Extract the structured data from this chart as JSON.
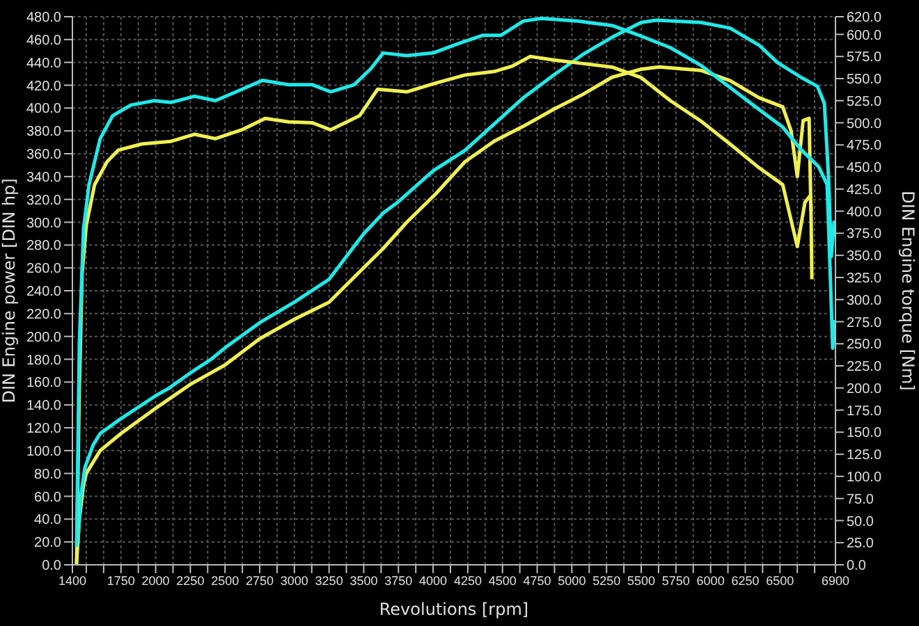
{
  "chart_data": {
    "type": "line",
    "xlabel": "Revolutions [rpm]",
    "ylabel": "DIN Engine power [DIN hp]",
    "y2label": "DIN Engine torque [Nm]",
    "grid": true,
    "marker": "none",
    "line_style": "solid",
    "xlim": [
      1400,
      6900
    ],
    "xticks": [
      1400,
      {
        "value": 1500,
        "label": null
      },
      {
        "value": 1625,
        "label": null
      },
      1750,
      {
        "value": 1875,
        "label": null
      },
      2000,
      {
        "value": 2125,
        "label": null
      },
      2250,
      {
        "value": 2375,
        "label": null
      },
      2500,
      {
        "value": 2625,
        "label": null
      },
      2750,
      {
        "value": 2875,
        "label": null
      },
      3000,
      {
        "value": 3125,
        "label": null
      },
      3250,
      {
        "value": 3375,
        "label": null
      },
      3500,
      {
        "value": 3625,
        "label": null
      },
      3750,
      {
        "value": 3875,
        "label": null
      },
      4000,
      {
        "value": 4125,
        "label": null
      },
      4250,
      {
        "value": 4375,
        "label": null
      },
      4500,
      {
        "value": 4625,
        "label": null
      },
      4750,
      {
        "value": 4875,
        "label": null
      },
      5000,
      {
        "value": 5125,
        "label": null
      },
      5250,
      {
        "value": 5375,
        "label": null
      },
      5500,
      {
        "value": 5625,
        "label": null
      },
      5750,
      {
        "value": 5875,
        "label": null
      },
      6000,
      {
        "value": 6125,
        "label": null
      },
      6250,
      {
        "value": 6375,
        "label": null
      },
      6500,
      {
        "value": 6625,
        "label": null
      },
      {
        "value": 6750,
        "label": null
      },
      6900
    ],
    "ylim": [
      0,
      480
    ],
    "yticks": [
      {
        "value": 0,
        "label": "0.0"
      },
      {
        "value": 20,
        "label": "20.0"
      },
      {
        "value": 40,
        "label": "40.0"
      },
      {
        "value": 60,
        "label": "60.0"
      },
      {
        "value": 80,
        "label": "80.0"
      },
      {
        "value": 100,
        "label": "100.0"
      },
      {
        "value": 120,
        "label": "120.0"
      },
      {
        "value": 140,
        "label": "140.0"
      },
      {
        "value": 160,
        "label": "160.0"
      },
      {
        "value": 180,
        "label": "180.0"
      },
      {
        "value": 200,
        "label": "200.0"
      },
      {
        "value": 220,
        "label": "220.0"
      },
      {
        "value": 240,
        "label": "240.0"
      },
      {
        "value": 260,
        "label": "260.0"
      },
      {
        "value": 280,
        "label": "280.0"
      },
      {
        "value": 300,
        "label": "300.0"
      },
      {
        "value": 320,
        "label": "320.0"
      },
      {
        "value": 340,
        "label": "340.0"
      },
      {
        "value": 360,
        "label": "360.0"
      },
      {
        "value": 380,
        "label": "380.0"
      },
      {
        "value": 400,
        "label": "400.0"
      },
      {
        "value": 420,
        "label": "420.0"
      },
      {
        "value": 440,
        "label": "440.0"
      },
      {
        "value": 460,
        "label": "460.0"
      },
      {
        "value": 480,
        "label": "480.0"
      }
    ],
    "y2lim": [
      0,
      620
    ],
    "y2ticks": [
      {
        "value": 0,
        "label": "0.0"
      },
      {
        "value": 25,
        "label": "25.0"
      },
      {
        "value": 50,
        "label": "50.0"
      },
      {
        "value": 75,
        "label": "75.0"
      },
      {
        "value": 100,
        "label": "100.0"
      },
      {
        "value": 125,
        "label": "125.0"
      },
      {
        "value": 150,
        "label": "150.0"
      },
      {
        "value": 175,
        "label": "175.0"
      },
      {
        "value": 200,
        "label": "200.0"
      },
      {
        "value": 225,
        "label": "225.0"
      },
      {
        "value": 250,
        "label": "250.0"
      },
      {
        "value": 275,
        "label": "275.0"
      },
      {
        "value": 300,
        "label": "300.0"
      },
      {
        "value": 325,
        "label": "325.0"
      },
      {
        "value": 350,
        "label": "350.0"
      },
      {
        "value": 375,
        "label": "375.0"
      },
      {
        "value": 400,
        "label": "400.0"
      },
      {
        "value": 425,
        "label": "425.0"
      },
      {
        "value": 450,
        "label": "450.0"
      },
      {
        "value": 475,
        "label": "475.0"
      },
      {
        "value": 500,
        "label": "500.0"
      },
      {
        "value": 525,
        "label": "525.0"
      },
      {
        "value": 550,
        "label": "550.0"
      },
      {
        "value": 575,
        "label": "575.0"
      },
      {
        "value": 600,
        "label": "600.0"
      },
      {
        "value": 620,
        "label": "620.0"
      }
    ],
    "series": [
      {
        "color": "#f0f050",
        "x": [
          1430,
          1450,
          1480,
          1500,
          1600,
          1750,
          2000,
          2250,
          2500,
          2750,
          3000,
          3250,
          3640,
          3810,
          4020,
          4230,
          4440,
          4650,
          4870,
          5080,
          5290,
          5500,
          5630,
          5930,
          6140,
          6350,
          6520,
          6580,
          6625,
          6667,
          6710,
          6725,
          6730
        ],
        "values": [
          2,
          40,
          70,
          80,
          100,
          115,
          137,
          158,
          175,
          198,
          215,
          230,
          277,
          300,
          325,
          353,
          371,
          384,
          399,
          412,
          427,
          434,
          436,
          433,
          424,
          409,
          401,
          380,
          340,
          389,
          391,
          300,
          250
        ]
      },
      {
        "color": "#20e8e8",
        "x": [
          1440,
          1460,
          1490,
          1550,
          1600,
          1750,
          2000,
          2100,
          2250,
          2400,
          2500,
          2750,
          3000,
          3250,
          3500,
          3640,
          3750,
          4000,
          4230,
          4440,
          4650,
          4870,
          5080,
          5290,
          5500,
          5610,
          5930,
          6140,
          6350,
          6480,
          6650,
          6770,
          6820,
          6850,
          6870,
          6890,
          6900
        ],
        "values": [
          20,
          60,
          85,
          105,
          115,
          128,
          148,
          155,
          168,
          180,
          190,
          212,
          230,
          250,
          290,
          308,
          318,
          345,
          363,
          386,
          409,
          429,
          447,
          462,
          475,
          477,
          475,
          470,
          455,
          440,
          427,
          419,
          404,
          340,
          270,
          300,
          290
        ]
      },
      {
        "axis": "y2",
        "color": "#f0f050",
        "x": [
          1430,
          1450,
          1470,
          1500,
          1560,
          1650,
          1730,
          1900,
          2110,
          2280,
          2430,
          2620,
          2790,
          2960,
          3130,
          3260,
          3470,
          3600,
          3810,
          4020,
          4230,
          4440,
          4570,
          4700,
          4870,
          5080,
          5290,
          5500,
          5710,
          5930,
          6140,
          6350,
          6520,
          6625,
          6680,
          6720,
          6725
        ],
        "values": [
          0,
          200,
          330,
          384,
          430,
          456,
          469,
          476,
          479,
          487,
          482,
          492,
          505,
          501,
          500,
          492,
          508,
          538,
          535,
          545,
          554,
          558,
          564,
          575,
          571,
          567,
          563,
          551,
          525,
          502,
          476,
          449,
          430,
          360,
          410,
          418,
          400
        ]
      },
      {
        "axis": "y2",
        "color": "#20e8e8",
        "x": [
          1430,
          1450,
          1480,
          1520,
          1600,
          1690,
          1820,
          1990,
          2110,
          2280,
          2430,
          2580,
          2770,
          2960,
          3130,
          3260,
          3430,
          3550,
          3640,
          3810,
          4000,
          4190,
          4360,
          4490,
          4650,
          4780,
          5040,
          5290,
          5500,
          5710,
          5930,
          6140,
          6350,
          6520,
          6650,
          6780,
          6840,
          6860,
          6880,
          6890,
          6900
        ],
        "values": [
          20,
          250,
          380,
          430,
          482,
          508,
          520,
          525,
          523,
          530,
          525,
          535,
          548,
          543,
          543,
          535,
          543,
          561,
          579,
          576,
          579,
          590,
          599,
          599,
          615,
          618,
          615,
          610,
          598,
          585,
          565,
          540,
          515,
          495,
          470,
          450,
          430,
          340,
          245,
          275,
          270
        ]
      }
    ]
  }
}
